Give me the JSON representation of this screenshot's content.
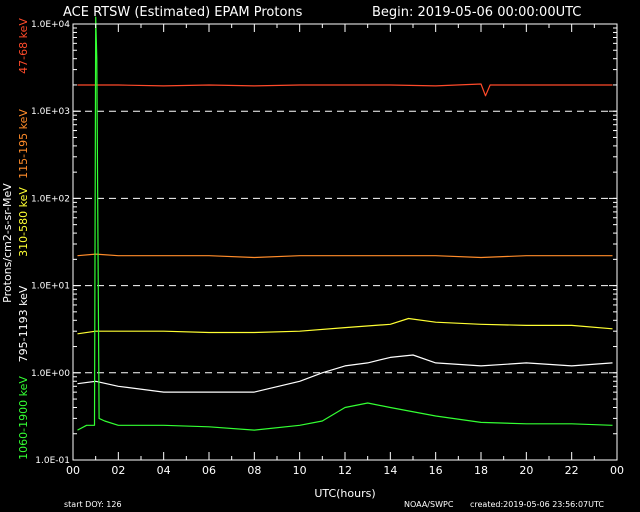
{
  "chart_data": {
    "type": "line",
    "title": "ACE RTSW (Estimated) EPAM Protons",
    "begin": "Begin: 2019-05-06 00:00:00UTC",
    "ylabel": "Protons/cm2-s-sr-MeV",
    "xlabel": "UTC(hours)",
    "yscale": "log",
    "ylim": [
      0.1,
      10000
    ],
    "xlim": [
      0,
      24
    ],
    "x_ticks": [
      "00",
      "02",
      "04",
      "06",
      "08",
      "10",
      "12",
      "14",
      "16",
      "18",
      "20",
      "22",
      "00"
    ],
    "y_ticks": [
      "1.0E-01",
      "1.0E+00",
      "1.0E+01",
      "1.0E+02",
      "1.0E+03",
      "1.0E+04"
    ],
    "series": [
      {
        "name": "47-68 keV",
        "color": "#ff4a2a",
        "x": [
          0.2,
          1,
          2,
          4,
          6,
          8,
          10,
          12,
          14,
          16,
          18,
          18.2,
          18.4,
          20,
          22,
          23.8
        ],
        "values": [
          2000,
          2000,
          2000,
          1950,
          2000,
          1950,
          2000,
          2000,
          2000,
          1950,
          2050,
          1500,
          2000,
          2000,
          2000,
          2000
        ]
      },
      {
        "name": "115-195 keV",
        "color": "#ff8c2a",
        "x": [
          0.2,
          1,
          2,
          4,
          6,
          8,
          10,
          12,
          14,
          16,
          18,
          20,
          22,
          23.8
        ],
        "values": [
          22,
          23,
          22,
          22,
          22,
          21,
          22,
          22,
          22,
          22,
          21,
          22,
          22,
          22
        ]
      },
      {
        "name": "310-580 keV",
        "color": "#ffff33",
        "x": [
          0.2,
          1,
          2,
          4,
          6,
          8,
          10,
          12,
          14,
          14.8,
          16,
          18,
          20,
          22,
          23.8
        ],
        "values": [
          2.8,
          3.0,
          3.0,
          3.0,
          2.9,
          2.9,
          3.0,
          3.3,
          3.6,
          4.2,
          3.8,
          3.6,
          3.5,
          3.5,
          3.2
        ]
      },
      {
        "name": "795-1193 keV",
        "color": "#ffffff",
        "x": [
          0.2,
          1,
          2,
          4,
          6,
          8,
          10,
          11,
          12,
          13,
          14,
          15,
          16,
          18,
          20,
          22,
          23.8
        ],
        "values": [
          0.75,
          0.8,
          0.7,
          0.6,
          0.6,
          0.6,
          0.8,
          1.0,
          1.2,
          1.3,
          1.5,
          1.6,
          1.3,
          1.2,
          1.3,
          1.2,
          1.3
        ]
      },
      {
        "name": "1060-1900 keV",
        "color": "#33ff33",
        "x": [
          0.2,
          0.6,
          0.95,
          1.0,
          1.05,
          1.15,
          1.4,
          2,
          4,
          6,
          8,
          10,
          11,
          12,
          13,
          14,
          16,
          18,
          20,
          22,
          23.8
        ],
        "values": [
          0.22,
          0.25,
          0.25,
          12000,
          4000,
          0.3,
          0.28,
          0.25,
          0.25,
          0.24,
          0.22,
          0.25,
          0.28,
          0.4,
          0.45,
          0.4,
          0.32,
          0.27,
          0.26,
          0.26,
          0.25
        ]
      }
    ]
  },
  "footer": {
    "start_doy": "start DOY:  126",
    "agency": "NOAA/SWPC",
    "created": "created:2019-05-06 23:56:07UTC"
  }
}
